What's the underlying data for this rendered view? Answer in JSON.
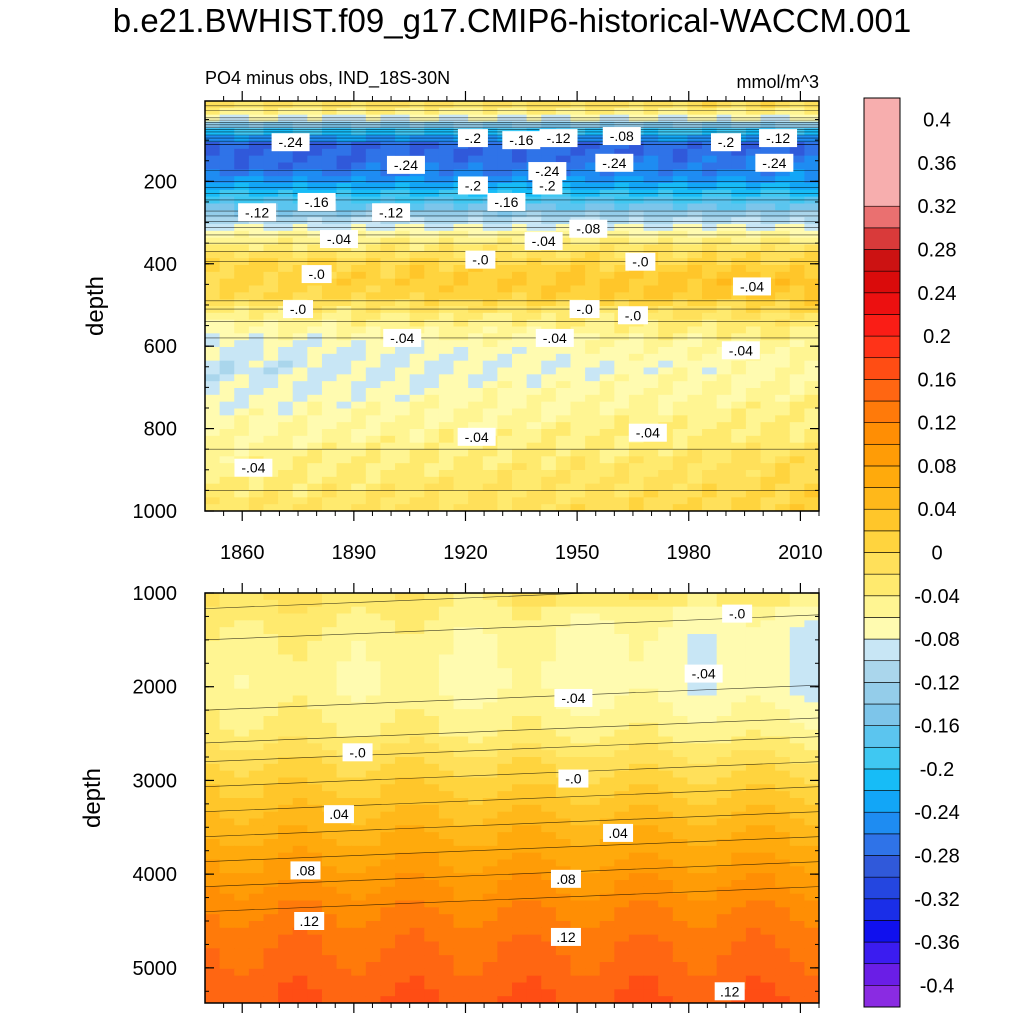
{
  "title": "b.e21.BWHIST.f09_g17.CMIP6-historical-WACCM.001",
  "chart_data": [
    {
      "type": "heatmap",
      "panel": "upper",
      "subtitle_left": "PO4 minus obs, IND_18S-30N",
      "subtitle_right": "mmol/m^3",
      "xlabel": "",
      "ylabel": "depth",
      "xlim": [
        1850,
        2015
      ],
      "ylim": [
        1000,
        5
      ],
      "y_inverted": true,
      "x_ticks": [
        "1860",
        "1890",
        "1920",
        "1950",
        "1980",
        "2010"
      ],
      "x_tick_values": [
        1860,
        1890,
        1920,
        1950,
        1980,
        2010
      ],
      "y_ticks": [
        "200",
        "400",
        "600",
        "800",
        "1000"
      ],
      "y_tick_values": [
        200,
        400,
        600,
        800,
        1000
      ],
      "depth_profile_depths": [
        5,
        40,
        80,
        110,
        160,
        200,
        230,
        260,
        290,
        320,
        350,
        380,
        410,
        440,
        480,
        520,
        560,
        600,
        650,
        700,
        750,
        800,
        850,
        900,
        950,
        1000
      ],
      "depth_profile_values": [
        0.0,
        -0.06,
        -0.2,
        -0.28,
        -0.27,
        -0.24,
        -0.2,
        -0.16,
        -0.11,
        -0.07,
        -0.04,
        -0.01,
        0.01,
        0.02,
        0.01,
        -0.03,
        -0.05,
        -0.07,
        -0.08,
        -0.07,
        -0.06,
        -0.05,
        -0.04,
        -0.03,
        -0.02,
        -0.01
      ],
      "contour_labels": [
        {
          "text": "-.24",
          "x": 1873,
          "y": 105
        },
        {
          "text": "-.2",
          "x": 1922,
          "y": 95
        },
        {
          "text": "-.16",
          "x": 1935,
          "y": 100
        },
        {
          "text": "-.12",
          "x": 1945,
          "y": 95
        },
        {
          "text": "-.08",
          "x": 1962,
          "y": 90
        },
        {
          "text": "-.2",
          "x": 1990,
          "y": 105
        },
        {
          "text": "-.12",
          "x": 2004,
          "y": 95
        },
        {
          "text": "-.24",
          "x": 1904,
          "y": 160
        },
        {
          "text": "-.24",
          "x": 1960,
          "y": 155
        },
        {
          "text": "-.24",
          "x": 2003,
          "y": 155
        },
        {
          "text": "-.24",
          "x": 1942,
          "y": 175
        },
        {
          "text": "-.2",
          "x": 1922,
          "y": 210
        },
        {
          "text": "-.2",
          "x": 1942,
          "y": 210
        },
        {
          "text": "-.16",
          "x": 1880,
          "y": 250
        },
        {
          "text": "-.16",
          "x": 1931,
          "y": 250
        },
        {
          "text": "-.12",
          "x": 1864,
          "y": 275
        },
        {
          "text": "-.12",
          "x": 1900,
          "y": 275
        },
        {
          "text": "-.08",
          "x": 1953,
          "y": 315
        },
        {
          "text": "-.04",
          "x": 1886,
          "y": 340
        },
        {
          "text": "-.04",
          "x": 1941,
          "y": 345
        },
        {
          "text": "-.0",
          "x": 1924,
          "y": 390
        },
        {
          "text": "-.0",
          "x": 1967,
          "y": 395
        },
        {
          "text": "-.0",
          "x": 1880,
          "y": 425
        },
        {
          "text": "-.04",
          "x": 1997,
          "y": 455
        },
        {
          "text": "-.0",
          "x": 1875,
          "y": 510
        },
        {
          "text": "-.0",
          "x": 1952,
          "y": 510
        },
        {
          "text": "-.0",
          "x": 1965,
          "y": 525
        },
        {
          "text": "-.04",
          "x": 1903,
          "y": 580
        },
        {
          "text": "-.04",
          "x": 1944,
          "y": 580
        },
        {
          "text": "-.04",
          "x": 1994,
          "y": 610
        },
        {
          "text": "-.04",
          "x": 1923,
          "y": 820
        },
        {
          "text": "-.04",
          "x": 1969,
          "y": 810
        },
        {
          "text": "-.04",
          "x": 1863,
          "y": 895
        }
      ]
    },
    {
      "type": "heatmap",
      "panel": "lower",
      "xlabel": "",
      "ylabel": "depth",
      "xlim": [
        1850,
        2015
      ],
      "ylim": [
        5375,
        1000
      ],
      "y_inverted": true,
      "y_ticks": [
        "1000",
        "2000",
        "3000",
        "4000",
        "5000"
      ],
      "y_tick_values": [
        1000,
        2000,
        3000,
        4000,
        5000
      ],
      "depth_profile_depths": [
        1000,
        1500,
        2000,
        2500,
        2800,
        3200,
        3600,
        4000,
        4400,
        4800,
        5375
      ],
      "depth_profile_values": [
        -0.01,
        -0.04,
        -0.05,
        -0.03,
        0.0,
        0.03,
        0.06,
        0.09,
        0.12,
        0.14,
        0.16
      ],
      "contour_labels": [
        {
          "text": "-.0",
          "x": 1993,
          "y": 1220
        },
        {
          "text": "-.04",
          "x": 1984,
          "y": 1860
        },
        {
          "text": "-.04",
          "x": 1949,
          "y": 2120
        },
        {
          "text": "-.0",
          "x": 1891,
          "y": 2700
        },
        {
          "text": "-.0",
          "x": 1949,
          "y": 2980
        },
        {
          "text": ".04",
          "x": 1886,
          "y": 3360
        },
        {
          "text": ".04",
          "x": 1961,
          "y": 3560
        },
        {
          "text": ".08",
          "x": 1877,
          "y": 3960
        },
        {
          "text": ".08",
          "x": 1947,
          "y": 4050
        },
        {
          "text": ".12",
          "x": 1878,
          "y": 4500
        },
        {
          "text": ".12",
          "x": 1947,
          "y": 4670
        },
        {
          "text": ".12",
          "x": 1991,
          "y": 5250
        }
      ]
    }
  ],
  "colorbar": {
    "labels": [
      "0.4",
      "0.36",
      "0.32",
      "0.28",
      "0.24",
      "0.2",
      "0.16",
      "0.12",
      "0.08",
      "0.04",
      "0",
      "-0.04",
      "-0.08",
      "-0.12",
      "-0.16",
      "-0.2",
      "-0.24",
      "-0.28",
      "-0.32",
      "-0.36",
      "-0.4"
    ],
    "label_values": [
      0.4,
      0.36,
      0.32,
      0.28,
      0.24,
      0.2,
      0.16,
      0.12,
      0.08,
      0.04,
      0,
      -0.04,
      -0.08,
      -0.12,
      -0.16,
      -0.2,
      -0.24,
      -0.28,
      -0.32,
      -0.36,
      -0.4
    ],
    "min": -0.42,
    "max": 0.42,
    "step": 0.02,
    "colors": [
      "#8a2be2",
      "#6a1ee6",
      "#3b1cf0",
      "#1010ee",
      "#1a2ee8",
      "#2446e0",
      "#3059da",
      "#2f73e8",
      "#1e8cf2",
      "#12a6f7",
      "#17bcf7",
      "#3fc8f2",
      "#5bc5ef",
      "#7dc5ea",
      "#94cdea",
      "#aad6ec",
      "#c8e6f5",
      "#fffbb0",
      "#fff592",
      "#ffea6e",
      "#ffe05a",
      "#ffd43e",
      "#ffc62a",
      "#ffb81a",
      "#ffaa0c",
      "#ff9c06",
      "#ff8e04",
      "#ff7a0a",
      "#ff6612",
      "#ff4d14",
      "#ff3318",
      "#fa1d16",
      "#ec1010",
      "#da0b0b",
      "#cc1212",
      "#d93a3a",
      "#ea7070",
      "#f7aeae"
    ]
  }
}
